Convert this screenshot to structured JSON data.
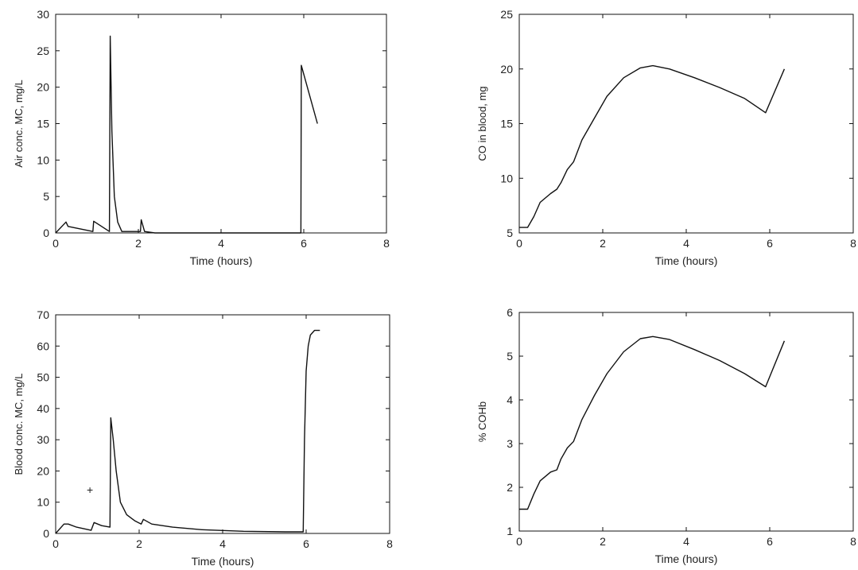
{
  "chart_data": [
    {
      "type": "line",
      "xlabel": "Time (hours)",
      "ylabel": "Air conc. MC, mg/L",
      "xlim": [
        0,
        8
      ],
      "ylim": [
        0,
        30
      ],
      "xticks": [
        0,
        2,
        4,
        6,
        8
      ],
      "yticks": [
        0,
        5,
        10,
        15,
        20,
        25,
        30
      ],
      "grid": false,
      "series": [
        {
          "x": [
            0,
            0.25,
            0.3,
            0.9,
            0.92,
            1.3,
            1.32,
            1.36,
            1.42,
            1.5,
            1.6,
            2.05,
            2.07,
            2.15,
            2.4,
            5.93,
            5.94,
            6.33
          ],
          "y": [
            0,
            1.5,
            0.9,
            0.2,
            1.6,
            0.2,
            27,
            14,
            5,
            1.5,
            0.2,
            0.2,
            1.8,
            0.2,
            0,
            0,
            23,
            15
          ]
        }
      ]
    },
    {
      "type": "line",
      "xlabel": "Time (hours)",
      "ylabel": "CO in blood, mg",
      "xlim": [
        0,
        8
      ],
      "ylim": [
        5,
        25
      ],
      "xticks": [
        0,
        2,
        4,
        6,
        8
      ],
      "yticks": [
        5,
        10,
        15,
        20,
        25
      ],
      "grid": false,
      "series": [
        {
          "x": [
            0,
            0.2,
            0.35,
            0.5,
            0.75,
            0.9,
            1.0,
            1.15,
            1.3,
            1.5,
            1.8,
            2.1,
            2.5,
            2.9,
            3.2,
            3.6,
            4.2,
            4.8,
            5.4,
            5.9,
            6.35
          ],
          "y": [
            5.5,
            5.5,
            6.5,
            7.8,
            8.6,
            9.0,
            9.6,
            10.8,
            11.5,
            13.5,
            15.5,
            17.5,
            19.2,
            20.1,
            20.3,
            20.0,
            19.2,
            18.3,
            17.3,
            16.0,
            20.0
          ]
        }
      ]
    },
    {
      "type": "line",
      "xlabel": "Time (hours)",
      "ylabel": "Blood conc. MC, mg/L",
      "xlim": [
        0,
        8
      ],
      "ylim": [
        0,
        70
      ],
      "xticks": [
        0,
        2,
        4,
        6,
        8
      ],
      "yticks": [
        0,
        10,
        20,
        30,
        40,
        50,
        60,
        70
      ],
      "grid": false,
      "series": [
        {
          "x": [
            0,
            0.2,
            0.3,
            0.5,
            0.85,
            0.92,
            1.1,
            1.3,
            1.32,
            1.38,
            1.45,
            1.55,
            1.7,
            1.9,
            2.05,
            2.1,
            2.3,
            2.8,
            3.5,
            4.5,
            5.5,
            5.93,
            5.96,
            6.0,
            6.05,
            6.1,
            6.2,
            6.33
          ],
          "y": [
            0,
            3,
            3,
            2,
            1,
            3.5,
            2.5,
            2,
            37,
            30,
            20,
            10,
            6,
            4,
            3,
            4.5,
            3,
            2,
            1.2,
            0.7,
            0.5,
            0.5,
            30,
            52,
            60,
            63.5,
            65,
            65
          ]
        }
      ],
      "annotations": [
        "+"
      ]
    },
    {
      "type": "line",
      "xlabel": "Time (hours)",
      "ylabel": "% COHb",
      "xlim": [
        0,
        8
      ],
      "ylim": [
        1,
        6
      ],
      "xticks": [
        0,
        2,
        4,
        6,
        8
      ],
      "yticks": [
        1,
        2,
        3,
        4,
        5,
        6
      ],
      "grid": false,
      "series": [
        {
          "x": [
            0,
            0.2,
            0.35,
            0.5,
            0.75,
            0.9,
            1.0,
            1.15,
            1.3,
            1.5,
            1.8,
            2.1,
            2.5,
            2.9,
            3.2,
            3.6,
            4.2,
            4.8,
            5.4,
            5.9,
            6.35
          ],
          "y": [
            1.5,
            1.5,
            1.85,
            2.15,
            2.35,
            2.4,
            2.65,
            2.9,
            3.05,
            3.55,
            4.1,
            4.6,
            5.1,
            5.4,
            5.45,
            5.38,
            5.15,
            4.9,
            4.6,
            4.3,
            5.35
          ]
        }
      ]
    }
  ]
}
